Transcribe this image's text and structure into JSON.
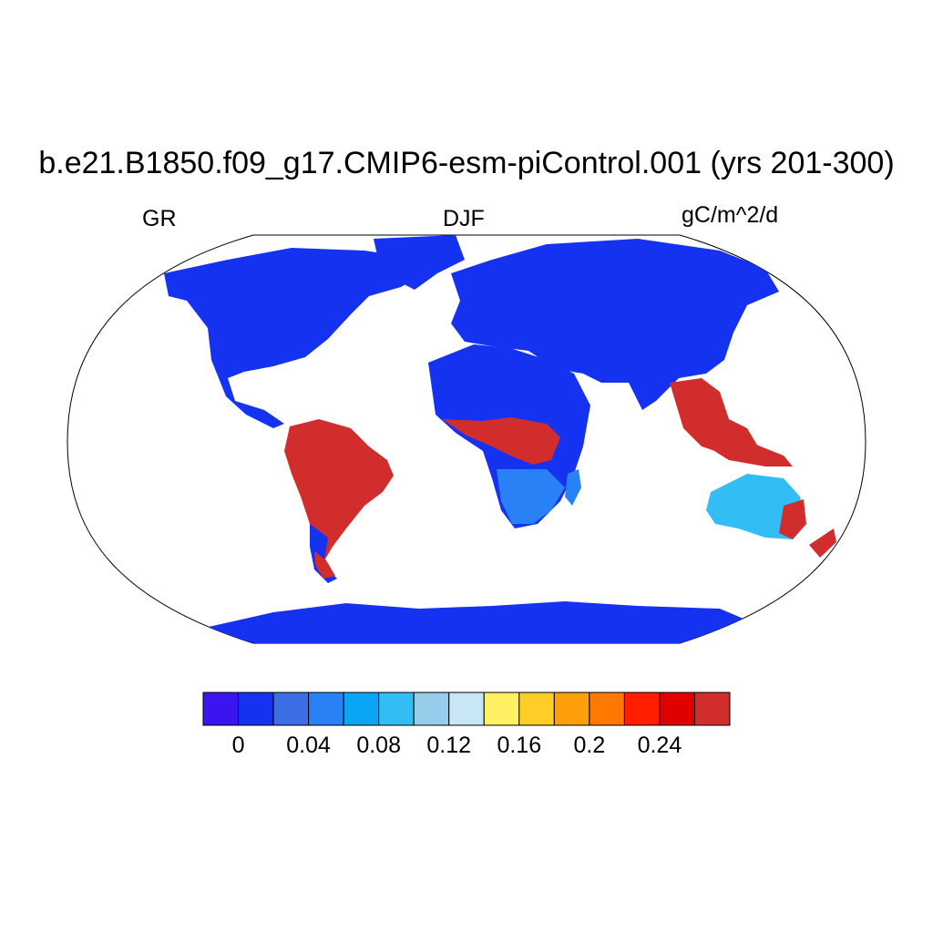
{
  "title": "b.e21.B1850.f09_g17.CMIP6-esm-piControl.001 (yrs 201-300)",
  "left_label": "GR",
  "center_label": "DJF",
  "right_label": "gC/m^2/d",
  "colorbar": {
    "colors": [
      "#3c14f0",
      "#1432f0",
      "#3c6ee6",
      "#2882f5",
      "#0aa5f5",
      "#32bef5",
      "#96cdeb",
      "#c8e6f5",
      "#fff064",
      "#ffcd28",
      "#ffa00a",
      "#ff7800",
      "#ff1e00",
      "#e10000",
      "#d22d2d"
    ],
    "tick_labels": [
      "0",
      "0.04",
      "0.08",
      "0.12",
      "0.16",
      "0.2",
      "0.24"
    ],
    "tick_positions": [
      1,
      3,
      5,
      7,
      9,
      11,
      13
    ]
  },
  "colors": {
    "ocean": "#ffffff",
    "land_low": "#1432f0",
    "land_high": "#d22d2d"
  }
}
